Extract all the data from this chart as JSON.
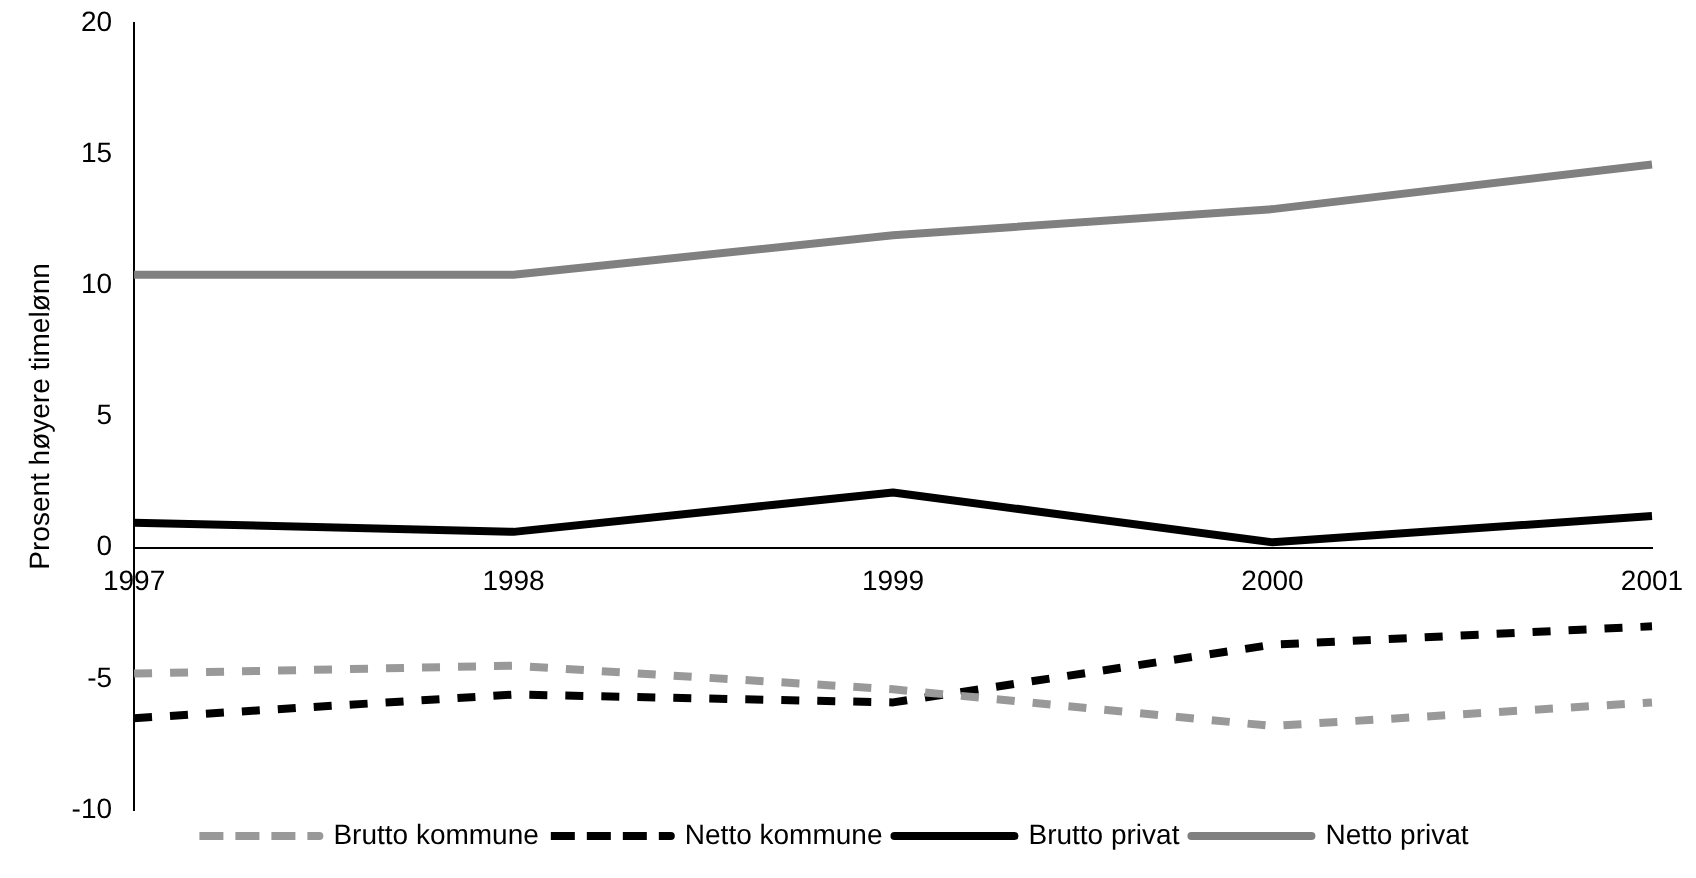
{
  "chart_data": {
    "type": "line",
    "ylabel": "Prosent høyere timelønn",
    "categories": [
      "1997",
      "1998",
      "1999",
      "2000",
      "2001"
    ],
    "ylim": [
      -10,
      20
    ],
    "yticks": [
      -10,
      -5,
      0,
      5,
      10,
      15,
      20
    ],
    "grid": false,
    "legend": "bottom",
    "marker": "none",
    "series": [
      {
        "name": "Brutto kommune",
        "color": "#999999",
        "line_style": "dashed",
        "values": [
          -4.8,
          -4.5,
          -5.4,
          -6.8,
          -5.9
        ]
      },
      {
        "name": "Netto kommune",
        "color": "#000000",
        "line_style": "dashed",
        "values": [
          -6.5,
          -5.6,
          -5.9,
          -3.7,
          -3.0
        ]
      },
      {
        "name": "Brutto privat",
        "color": "#000000",
        "line_style": "solid",
        "values": [
          0.95,
          0.6,
          2.1,
          0.2,
          1.2
        ]
      },
      {
        "name": "Netto privat",
        "color": "#808080",
        "line_style": "solid",
        "values": [
          10.4,
          10.4,
          11.9,
          12.9,
          14.6
        ]
      }
    ]
  }
}
